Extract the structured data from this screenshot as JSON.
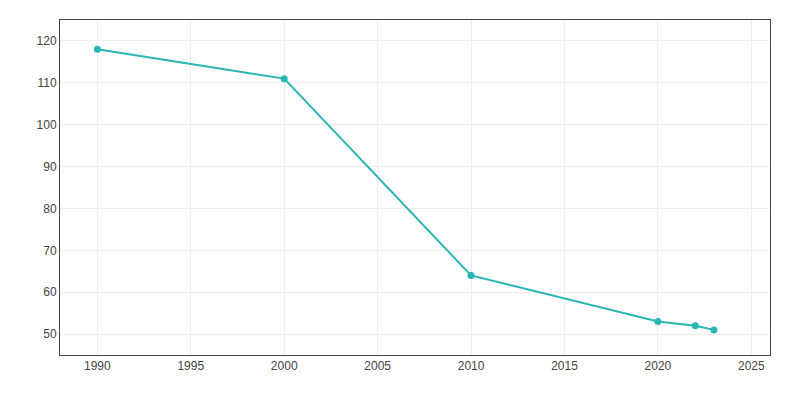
{
  "chart_data": {
    "type": "line",
    "x": [
      1990,
      2000,
      2010,
      2020,
      2022,
      2023
    ],
    "values": [
      118,
      111,
      64,
      53,
      52,
      51
    ],
    "color": "#2ab5b5",
    "marker": "circle",
    "xlim": [
      1988,
      2026
    ],
    "ylim": [
      45,
      125
    ],
    "xticks": [
      1990,
      1995,
      2000,
      2005,
      2010,
      2015,
      2020,
      2025
    ],
    "yticks": [
      50,
      60,
      70,
      80,
      90,
      100,
      110,
      120
    ],
    "grid": true
  }
}
